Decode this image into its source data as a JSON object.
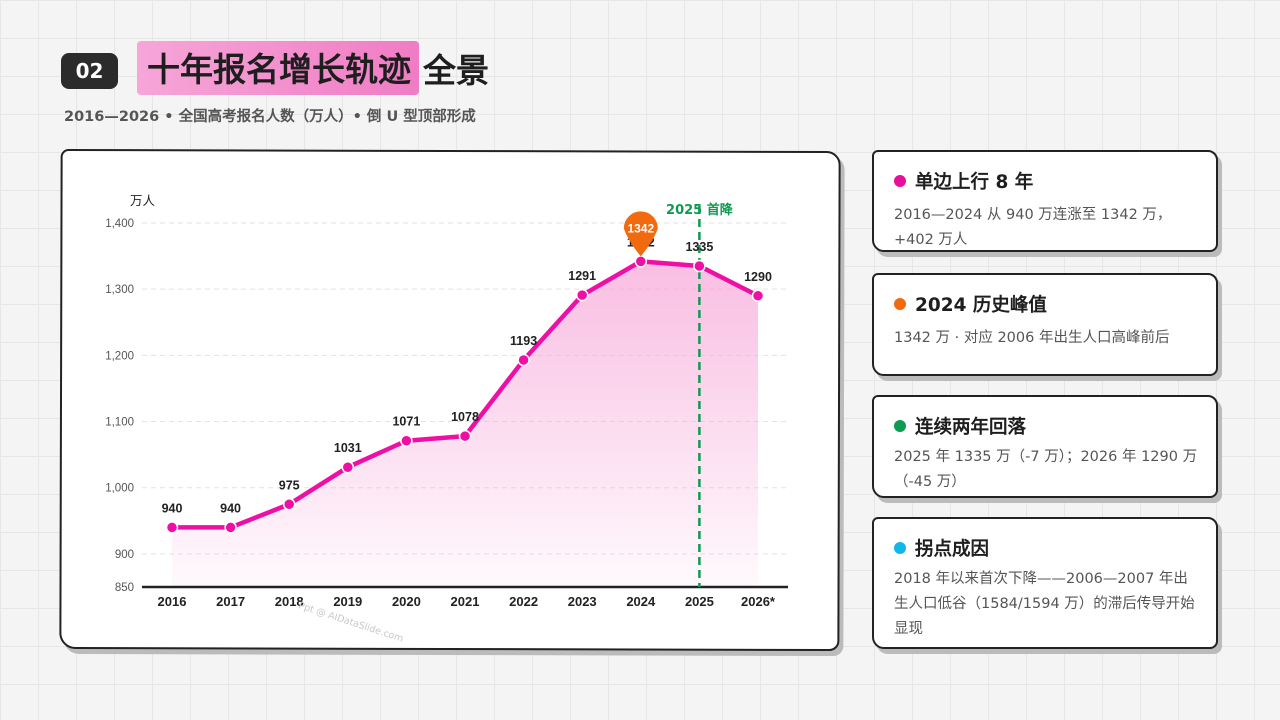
{
  "header": {
    "badge": "02",
    "title_highlight": "十年报名增长轨迹",
    "title_rest": "全景",
    "subtitle": "2016—2026 • 全国高考报名人数（万人）• 倒 U 型顶部形成"
  },
  "chart_data": {
    "type": "area",
    "ylabel": "万人",
    "categories": [
      "2016",
      "2017",
      "2018",
      "2019",
      "2020",
      "2021",
      "2022",
      "2023",
      "2024",
      "2025",
      "2026*"
    ],
    "series": [
      {
        "values": [
          940,
          940,
          975,
          1031,
          1071,
          1078,
          1193,
          1291,
          1342,
          1335,
          1290
        ]
      }
    ],
    "data_labels": [
      "940",
      "940",
      "975",
      "1031",
      "1071",
      "1078",
      "1193",
      "1291",
      "1342",
      "1335",
      "1290"
    ],
    "ylim": [
      850,
      1400
    ],
    "yticks": [
      850,
      900,
      1000,
      1100,
      1200,
      1300,
      1400
    ],
    "ytick_labels": [
      "850",
      "900",
      "1,000",
      "1,100",
      "1,200",
      "1,300",
      "1,400"
    ],
    "grid": true,
    "line_color": "#ef0fa5",
    "fill_color": "#f7a8d9",
    "peak": {
      "index": 8,
      "label": "1342",
      "color": "#f26a10"
    },
    "marker_line": {
      "index": 9,
      "label": "2025 首降",
      "color": "#0f9a52"
    },
    "watermark": "Ppt @ AIDataSlide.com"
  },
  "cards": [
    {
      "color": "#e5109b",
      "title": "单边上行 8 年",
      "body": "2016—2024 从 940 万连涨至 1342 万，+402 万人"
    },
    {
      "color": "#f26a10",
      "title": "2024 历史峰值",
      "body": "1342 万 · 对应 2006 年出生人口高峰前后"
    },
    {
      "color": "#0f9a52",
      "title": "连续两年回落",
      "body": "2025 年 1335 万（-7 万）；2026 年 1290 万（-45 万）"
    },
    {
      "color": "#11b6ea",
      "title": "拐点成因",
      "body": "2018 年以来首次下降——2006—2007 年出生人口低谷（1584/1594 万）的滞后传导开始显现"
    }
  ]
}
